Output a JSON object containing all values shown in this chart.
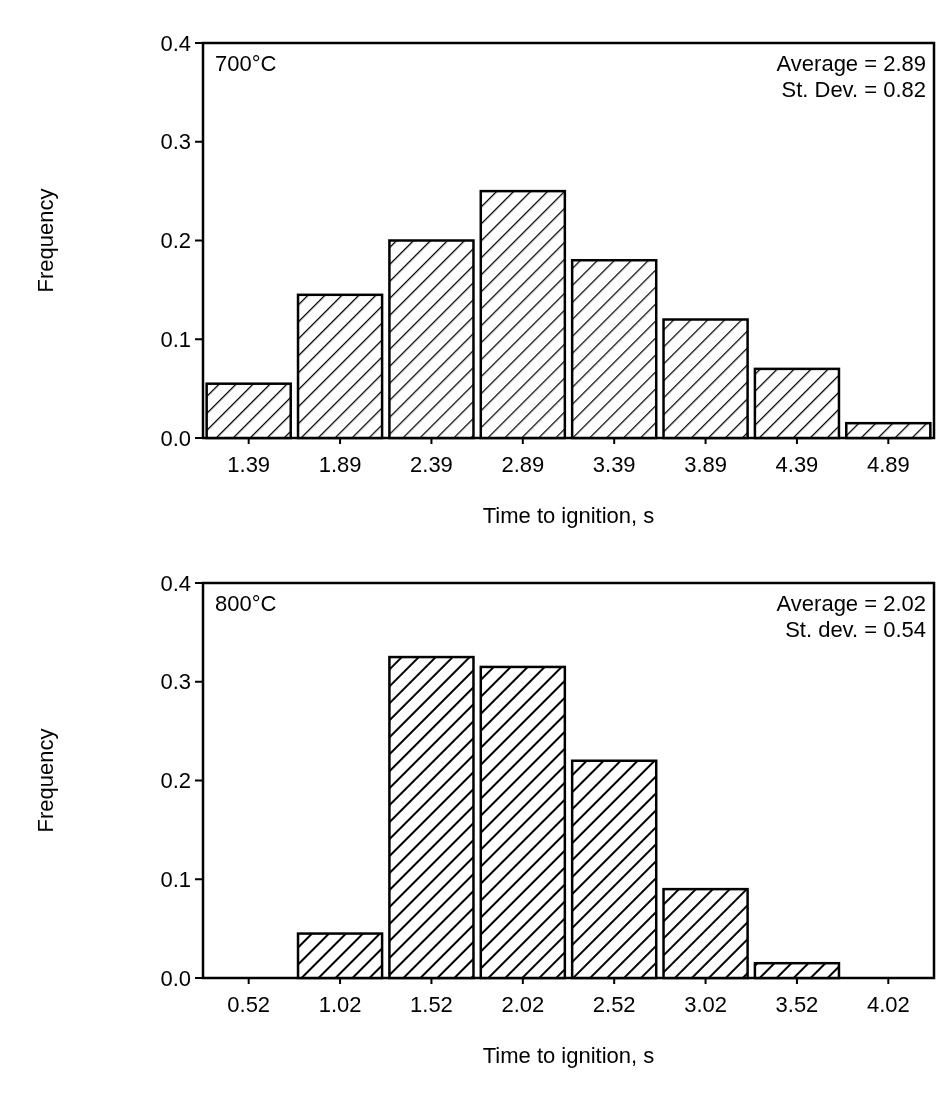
{
  "chart_data": [
    {
      "type": "bar",
      "xlabel": "Time to ignition, s",
      "ylabel": "Frequency",
      "annotations": [
        "700°C",
        "Average = 2.89",
        "St. Dev. = 0.82"
      ],
      "categories": [
        "1.39",
        "1.89",
        "2.39",
        "2.89",
        "3.39",
        "3.89",
        "4.39",
        "4.89"
      ],
      "values": [
        0.055,
        0.145,
        0.2,
        0.25,
        0.18,
        0.12,
        0.07,
        0.015
      ],
      "color": "#000000",
      "ylim": [
        0,
        0.4
      ],
      "yticks": [
        {
          "value": 0,
          "label": "0.0"
        },
        0.1,
        0.2,
        0.3,
        0.4
      ]
    },
    {
      "type": "bar",
      "xlabel": "Time to ignition, s",
      "ylabel": "Frequency",
      "annotations": [
        "800°C",
        "Average = 2.02",
        "St. dev. = 0.54"
      ],
      "categories": [
        "0.52",
        "1.02",
        "1.52",
        "2.02",
        "2.52",
        "3.02",
        "3.52",
        "4.02"
      ],
      "values": [
        0,
        0.045,
        0.325,
        0.315,
        0.22,
        0.09,
        0.015,
        0
      ],
      "color": "#000000",
      "ylim": [
        0,
        0.4
      ],
      "yticks": [
        {
          "value": 0,
          "label": "0.0"
        },
        0.1,
        0.2,
        0.3,
        0.4
      ]
    }
  ]
}
